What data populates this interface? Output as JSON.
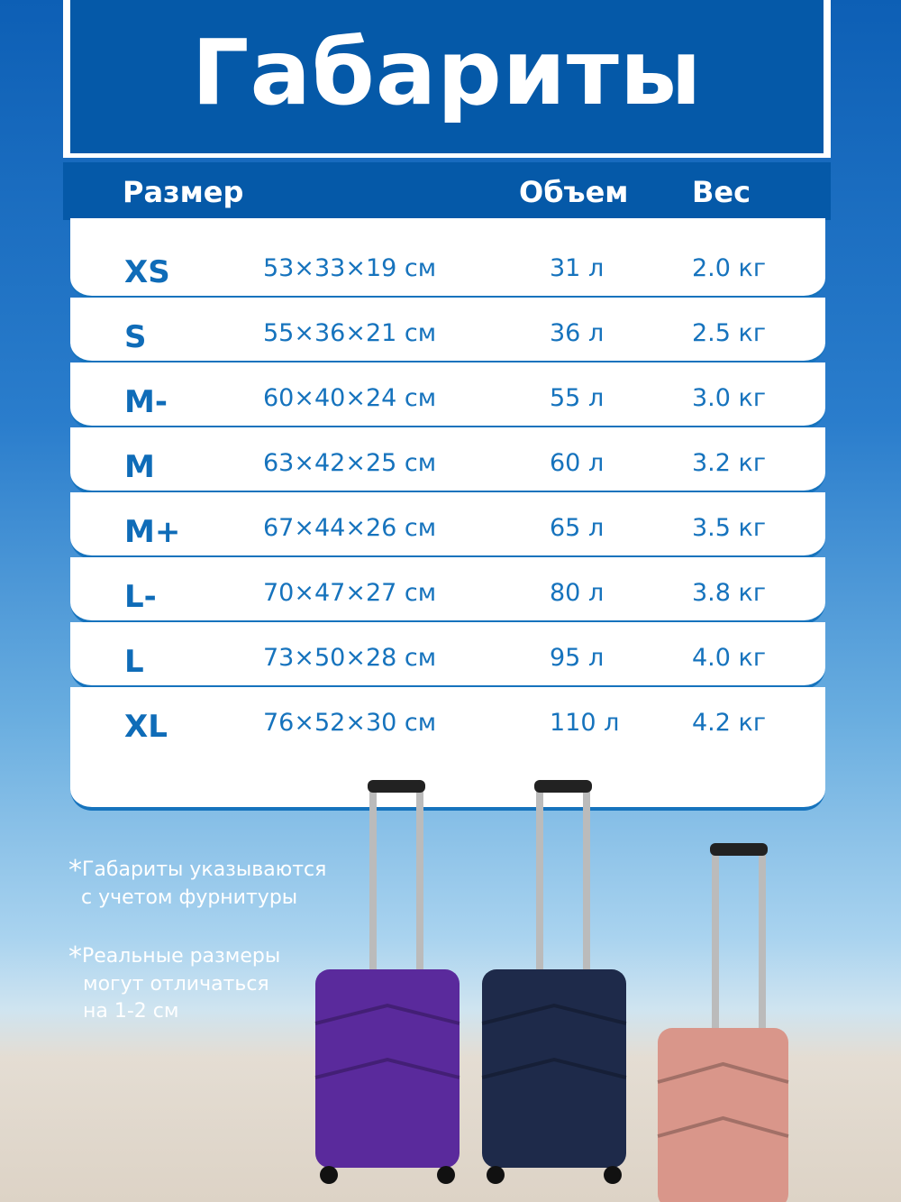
{
  "title": "Габариты",
  "headers": {
    "size": "Размер",
    "volume": "Объем",
    "weight": "Вес"
  },
  "rows": [
    {
      "size": "XS",
      "dims": "53×33×19 см",
      "volume": "31 л",
      "weight": "2.0 кг"
    },
    {
      "size": "S",
      "dims": "55×36×21 см",
      "volume": "36 л",
      "weight": "2.5 кг"
    },
    {
      "size": "M-",
      "dims": "60×40×24 см",
      "volume": "55 л",
      "weight": "3.0 кг"
    },
    {
      "size": "M",
      "dims": "63×42×25 см",
      "volume": "60 л",
      "weight": "3.2 кг"
    },
    {
      "size": "M+",
      "dims": "67×44×26 см",
      "volume": "65 л",
      "weight": "3.5 кг"
    },
    {
      "size": "L-",
      "dims": "70×47×27 см",
      "volume": "80 л",
      "weight": "3.8 кг"
    },
    {
      "size": "L",
      "dims": "73×50×28 см",
      "volume": "95 л",
      "weight": "4.0 кг"
    },
    {
      "size": "XL",
      "dims": "76×52×30 см",
      "volume": "110 л",
      "weight": "4.2 кг"
    }
  ],
  "notes": [
    {
      "star": "*",
      "line1": "Габариты указываются",
      "line2": "с учетом фурнитуры",
      "line3": ""
    },
    {
      "star": "*",
      "line1": "Реальные размеры",
      "line2": "могут отличаться",
      "line3": "на 1-2 см"
    }
  ],
  "suitcase_colors": [
    "#5a2a9c",
    "#1e2a4a",
    "#d9968a"
  ]
}
